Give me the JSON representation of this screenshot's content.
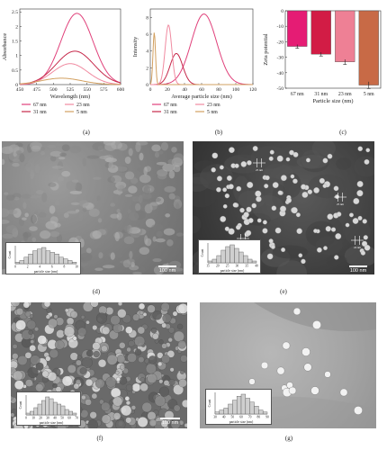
{
  "chart_data": [
    {
      "type": "line",
      "panel": "(a)",
      "xlabel": "Wavelength (nm)",
      "ylabel": "Absorbance",
      "xlim": [
        450,
        600
      ],
      "ylim": [
        0,
        2.6
      ],
      "xticks": [
        "450",
        "475",
        "500",
        "525",
        "550",
        "575",
        "600"
      ],
      "yticks": [
        "0",
        "0.5",
        "1",
        "1.5",
        "2",
        "2.5"
      ],
      "series": [
        {
          "name": "67 nm",
          "color": "#e0407a",
          "peak": 535,
          "height": 2.45,
          "width": 24
        },
        {
          "name": "31 nm",
          "color": "#c6284a",
          "peak": 532,
          "height": 1.15,
          "width": 28
        },
        {
          "name": "23 nm",
          "color": "#f08aa0",
          "peak": 525,
          "height": 0.72,
          "width": 26
        },
        {
          "name": "5 nm",
          "color": "#d2a060",
          "peak": 512,
          "height": 0.22,
          "width": 30
        }
      ],
      "legend": [
        "67 nm",
        "23 nm",
        "31 nm",
        "5 nm"
      ]
    },
    {
      "type": "line",
      "panel": "(b)",
      "xlabel": "Average particle size (nm)",
      "ylabel": "Intensity",
      "xlim": [
        0,
        130
      ],
      "ylim": [
        0,
        9
      ],
      "xticks": [
        "0",
        "20",
        "40",
        "60",
        "80",
        "100",
        "120"
      ],
      "yticks": [
        "0",
        "2",
        "4",
        "6",
        "8"
      ],
      "series": [
        {
          "name": "67 nm",
          "color": "#e0407a",
          "peak": 68,
          "height": 8.4,
          "width": 16
        },
        {
          "name": "31 nm",
          "color": "#c6284a",
          "peak": 33,
          "height": 3.7,
          "width": 8
        },
        {
          "name": "23 nm",
          "color": "#f08aa0",
          "peak": 23,
          "height": 7.1,
          "width": 4.2
        },
        {
          "name": "5 nm",
          "color": "#d2a060",
          "peak": 5,
          "height": 6.2,
          "width": 1.6
        }
      ],
      "legend": [
        "67 nm",
        "23 nm",
        "31 nm",
        "5 nm"
      ]
    },
    {
      "type": "bar",
      "panel": "(c)",
      "xlabel": "Particle size (nm)",
      "ylabel": "Zeta potential",
      "categories": [
        "67 nm",
        "31 nm",
        "23 nm",
        "5 nm"
      ],
      "values": [
        -23,
        -28,
        -33,
        -48
      ],
      "errors": [
        1.2,
        1.2,
        1.6,
        2.2
      ],
      "colors": [
        "#e51c74",
        "#d21c45",
        "#ee8095",
        "#c86a46"
      ],
      "ylim": [
        -50,
        0
      ],
      "yticks": [
        "0",
        "-10",
        "-20",
        "-30",
        "-40",
        "-50"
      ]
    }
  ],
  "captions": {
    "a": "(a)",
    "b": "(b)",
    "c": "(c)",
    "d": "(d)",
    "e": "(e)",
    "f": "(f)",
    "g": "(g)"
  },
  "micrographs": {
    "d": {
      "scale": "100 nm",
      "inset_xlabel": "particle size (nm)",
      "inset_ylabel": "Count",
      "inset_ticks": [
        "0",
        "2",
        "4",
        "6",
        "8",
        "10"
      ],
      "hist": [
        1,
        2,
        4,
        6,
        8,
        9,
        10,
        8,
        7,
        6,
        4,
        3,
        2,
        1
      ]
    },
    "e": {
      "scale": "100 nm",
      "inset_xlabel": "particle size (nm)",
      "inset_ylabel": "Count",
      "inset_ticks": [
        "15",
        "20",
        "25",
        "30",
        "35",
        "40"
      ],
      "hist": [
        1,
        2,
        4,
        7,
        9,
        10,
        8,
        6,
        4,
        2,
        1
      ],
      "measure_labels": [
        "25 nm",
        "25 nm",
        "25 nm",
        "24 nm"
      ]
    },
    "f": {
      "scale": "100 nm",
      "inset_xlabel": "particle size (nm)",
      "inset_ylabel": "Count",
      "inset_ticks": [
        "0",
        "10",
        "20",
        "30",
        "40",
        "50",
        "60",
        "70"
      ],
      "hist": [
        1,
        2,
        4,
        6,
        8,
        10,
        9,
        7,
        6,
        5,
        3,
        2,
        1
      ]
    },
    "g": {
      "inset_xlabel": "particle size (nm)",
      "inset_ylabel": "Count",
      "inset_ticks": [
        "30",
        "40",
        "50",
        "60",
        "70",
        "80",
        "90"
      ],
      "hist": [
        1,
        2,
        3,
        5,
        7,
        9,
        10,
        8,
        6,
        4,
        2,
        1
      ]
    }
  }
}
